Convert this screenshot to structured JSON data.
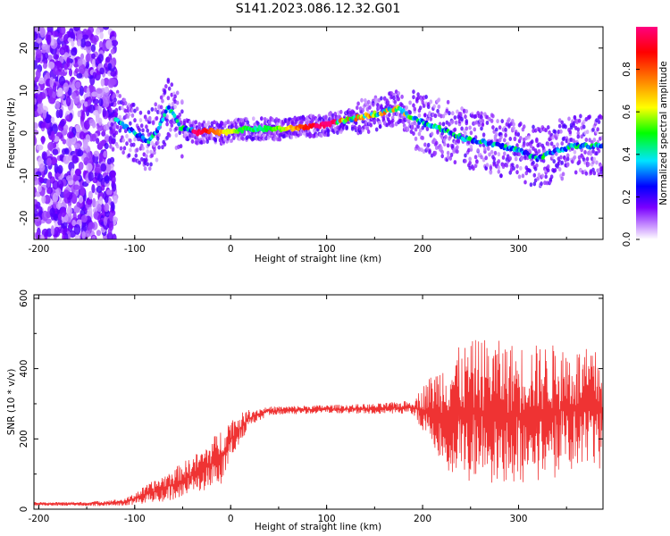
{
  "title": "S141.2023.086.12.32.G01",
  "chart_data": [
    {
      "type": "heatmap",
      "xlabel": "Height of straight line (km)",
      "ylabel": "Frequency (Hz)",
      "xlim": [
        -205,
        388
      ],
      "ylim": [
        -25,
        25
      ],
      "x_ticks": [
        -200,
        -100,
        0,
        100,
        200,
        300
      ],
      "y_ticks": [
        -20,
        -10,
        0,
        10,
        20
      ],
      "colorbar": {
        "label": "Normalized spectral amplitude",
        "range": [
          0,
          1
        ],
        "ticks": [
          "0.0",
          "0.2",
          "0.4",
          "0.6",
          "0.8"
        ],
        "colormap": [
          "#ffffff",
          "#7a00ff",
          "#0000ff",
          "#00e5ff",
          "#00ff00",
          "#ffff00",
          "#ff8000",
          "#ff0000",
          "#ff0080"
        ]
      },
      "ridge": {
        "x": [
          -120,
          -100,
          -85,
          -75,
          -65,
          -58,
          -52,
          -45,
          -35,
          -25,
          -10,
          0,
          20,
          40,
          60,
          80,
          100,
          120,
          140,
          160,
          175,
          185,
          195,
          205,
          220,
          240,
          260,
          280,
          300,
          320,
          340,
          360,
          385
        ],
        "y": [
          3,
          0,
          -2,
          1,
          6,
          4,
          1,
          1,
          0,
          0.5,
          0,
          0.5,
          1,
          1,
          1,
          1.5,
          2,
          3,
          4,
          5,
          6,
          4,
          3,
          2,
          1,
          -1,
          -2,
          -3,
          -4,
          -6,
          -4,
          -3,
          -3
        ]
      },
      "ridge_peak_x": [
        -45,
        100
      ]
    },
    {
      "type": "line",
      "xlabel": "Height of straight line (km)",
      "ylabel": "SNR (10 * v/v)",
      "xlim": [
        -205,
        388
      ],
      "ylim": [
        0,
        610
      ],
      "x_ticks": [
        -200,
        -100,
        0,
        100,
        200,
        300
      ],
      "y_ticks": [
        0,
        200,
        400,
        600
      ],
      "color": "#ef3333",
      "envelope": {
        "x": [
          -205,
          -150,
          -110,
          -90,
          -60,
          -30,
          -10,
          0,
          20,
          40,
          100,
          150,
          190,
          205,
          230,
          260,
          300,
          340,
          388
        ],
        "mean": [
          15,
          15,
          20,
          40,
          70,
          110,
          150,
          200,
          260,
          280,
          285,
          285,
          290,
          280,
          270,
          280,
          270,
          280,
          280
        ],
        "spread": [
          5,
          6,
          10,
          25,
          45,
          60,
          80,
          60,
          25,
          12,
          12,
          15,
          20,
          90,
          180,
          210,
          200,
          190,
          170
        ]
      }
    }
  ]
}
